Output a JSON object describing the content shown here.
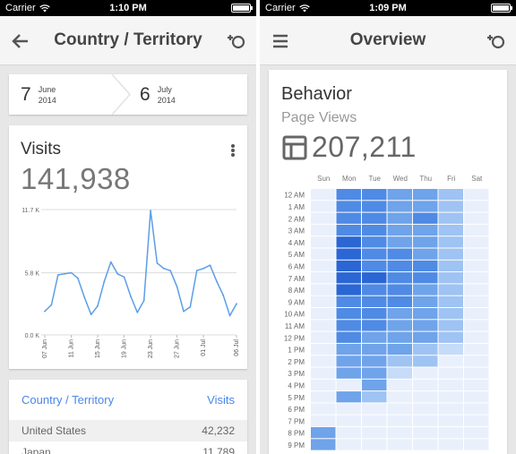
{
  "colors": {
    "accent": "#4a86e8",
    "line": "#5b9ee8",
    "heat_levels": [
      "#e9f0fc",
      "#c6dbf7",
      "#9fc3f2",
      "#6fa3ea",
      "#4f8ae4",
      "#2a66d4"
    ]
  },
  "left_screen": {
    "status_bar": {
      "carrier": "Carrier",
      "time": "1:10 PM"
    },
    "app_bar": {
      "title": "Country / Territory",
      "back_icon": "arrow-left-icon",
      "action_icon": "account-switch-icon"
    },
    "date_range": {
      "start": {
        "day": "7",
        "month": "June",
        "year": "2014"
      },
      "end": {
        "day": "6",
        "month": "July",
        "year": "2014"
      }
    },
    "visits": {
      "title": "Visits",
      "value": "141,938",
      "menu_icon": "more-vertical-icon"
    },
    "table": {
      "header_dimension": "Country / Territory",
      "header_metric": "Visits",
      "rows": [
        {
          "label": "United States",
          "value": "42,232"
        },
        {
          "label": "Japan",
          "value": "11,789"
        }
      ]
    }
  },
  "right_screen": {
    "status_bar": {
      "carrier": "Carrier",
      "time": "1:09 PM"
    },
    "app_bar": {
      "title": "Overview",
      "menu_icon": "hamburger-menu-icon",
      "action_icon": "account-switch-icon"
    },
    "behavior": {
      "title": "Behavior",
      "subtitle": "Page Views",
      "total": "207,211",
      "icon": "table-icon"
    }
  },
  "chart_data": [
    {
      "type": "line",
      "title": "",
      "ylim": [
        0,
        11700
      ],
      "yticks": [
        0,
        5800,
        11700
      ],
      "ytick_labels": [
        "0.0 K",
        "5.8 K",
        "11.7 K"
      ],
      "xtick_labels": [
        "07 Jun",
        "11 Jun",
        "15 Jun",
        "19 Jun",
        "23 Jun",
        "27 Jun",
        "01 Jul",
        "06 Jul"
      ],
      "xtick_index": [
        0,
        4,
        8,
        12,
        16,
        20,
        24,
        29
      ],
      "grid": true,
      "series": [
        {
          "values": [
            2200,
            2800,
            5600,
            5700,
            5800,
            5300,
            3500,
            1900,
            2700,
            5000,
            6800,
            5700,
            5400,
            3600,
            2100,
            3200,
            11600,
            6700,
            6200,
            6000,
            4500,
            2200,
            2600,
            6000,
            6200,
            6500,
            5000,
            3700,
            1800,
            2900
          ]
        }
      ]
    },
    {
      "type": "heatmap",
      "x_categories": [
        "Sun",
        "Mon",
        "Tue",
        "Wed",
        "Thu",
        "Fri",
        "Sat"
      ],
      "y_categories": [
        "12 AM",
        "1 AM",
        "2 AM",
        "3 AM",
        "4 AM",
        "5 AM",
        "6 AM",
        "7 AM",
        "8 AM",
        "9 AM",
        "10 AM",
        "11 AM",
        "12 PM",
        "1 PM",
        "2 PM",
        "3 PM",
        "4 PM",
        "5 PM",
        "6 PM",
        "7 PM",
        "8 PM",
        "9 PM"
      ],
      "levels": [
        [
          0,
          4,
          4,
          3,
          3,
          2,
          0
        ],
        [
          0,
          4,
          4,
          3,
          3,
          2,
          0
        ],
        [
          0,
          4,
          4,
          3,
          4,
          2,
          0
        ],
        [
          0,
          4,
          4,
          3,
          3,
          2,
          0
        ],
        [
          0,
          5,
          4,
          3,
          3,
          2,
          0
        ],
        [
          0,
          5,
          4,
          4,
          3,
          2,
          0
        ],
        [
          0,
          5,
          4,
          4,
          4,
          2,
          0
        ],
        [
          0,
          5,
          5,
          4,
          4,
          2,
          0
        ],
        [
          0,
          5,
          4,
          4,
          3,
          2,
          0
        ],
        [
          0,
          4,
          4,
          4,
          3,
          2,
          0
        ],
        [
          0,
          4,
          4,
          3,
          3,
          2,
          0
        ],
        [
          0,
          4,
          4,
          3,
          3,
          2,
          0
        ],
        [
          0,
          4,
          3,
          3,
          3,
          2,
          0
        ],
        [
          0,
          3,
          3,
          3,
          2,
          1,
          0
        ],
        [
          0,
          3,
          3,
          2,
          2,
          0,
          0
        ],
        [
          0,
          3,
          3,
          1,
          0,
          0,
          0
        ],
        [
          0,
          0,
          3,
          0,
          0,
          0,
          0
        ],
        [
          0,
          3,
          2,
          0,
          0,
          0,
          0
        ],
        [
          0,
          0,
          0,
          0,
          0,
          0,
          0
        ],
        [
          0,
          0,
          0,
          0,
          0,
          0,
          0
        ],
        [
          3,
          0,
          0,
          0,
          0,
          0,
          0
        ],
        [
          3,
          0,
          0,
          0,
          0,
          0,
          0
        ]
      ]
    }
  ]
}
